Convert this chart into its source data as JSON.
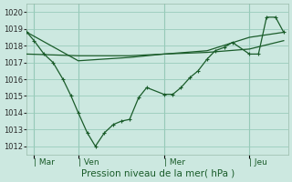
{
  "bg_color": "#cce8e0",
  "grid_color": "#99ccbb",
  "line_color": "#1a5c2a",
  "xlabel": "Pression niveau de la mer( hPa )",
  "ylim": [
    1011.5,
    1020.5
  ],
  "yticks": [
    1012,
    1013,
    1014,
    1015,
    1016,
    1017,
    1018,
    1019,
    1020
  ],
  "day_labels": [
    "| Mar",
    "| Ven",
    "| Mer",
    "| Jeu"
  ],
  "day_positions": [
    8,
    57,
    152,
    247
  ],
  "xlim": [
    0,
    290
  ],
  "series1_x": [
    0,
    8,
    19,
    29,
    40,
    49,
    57,
    67,
    76,
    86,
    96,
    105,
    114,
    124,
    133,
    152,
    162,
    171,
    181,
    190,
    200,
    209,
    219,
    228,
    247,
    257,
    266,
    276,
    285
  ],
  "series1_y": [
    1018.8,
    1018.3,
    1017.5,
    1017.0,
    1016.0,
    1015.0,
    1014.0,
    1012.8,
    1012.0,
    1012.8,
    1013.3,
    1013.5,
    1013.6,
    1014.9,
    1015.5,
    1015.1,
    1015.1,
    1015.5,
    1016.1,
    1016.5,
    1017.2,
    1017.7,
    1017.9,
    1018.2,
    1017.5,
    1017.5,
    1019.7,
    1019.7,
    1018.8
  ],
  "series2_x": [
    0,
    57,
    114,
    152,
    200,
    247,
    285
  ],
  "series2_y": [
    1017.5,
    1017.4,
    1017.4,
    1017.5,
    1017.6,
    1017.8,
    1018.3
  ],
  "series3_x": [
    0,
    57,
    114,
    152,
    200,
    247,
    285
  ],
  "series3_y": [
    1018.8,
    1017.1,
    1017.3,
    1017.5,
    1017.7,
    1018.5,
    1018.8
  ]
}
